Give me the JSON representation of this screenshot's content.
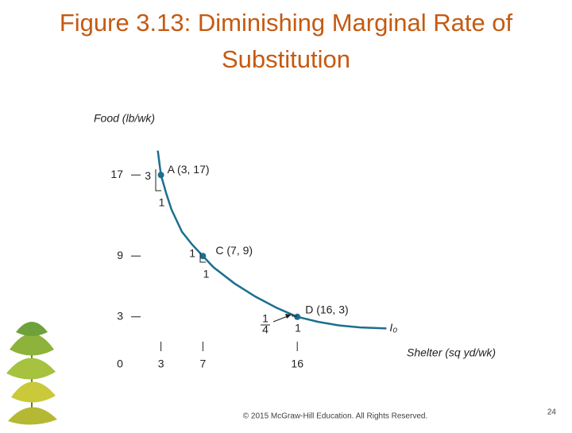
{
  "title": "Figure 3.13: Diminishing Marginal Rate of Substitution",
  "footer": "© 2015 McGraw-Hill Education. All Rights Reserved.",
  "page_number": "24",
  "chart_data": {
    "type": "line",
    "y_label": "Food (lb/wk)",
    "x_label": "Shelter (sq yd/wk)",
    "xlim": [
      0,
      25
    ],
    "ylim": [
      0,
      20
    ],
    "xticks": [
      0,
      3,
      7,
      16
    ],
    "yticks": [
      3,
      9,
      17
    ],
    "series": [
      {
        "name": "I₀",
        "color": "#1b6f8f",
        "x": [
          2.7,
          3,
          3.5,
          4,
          5,
          6,
          7,
          8,
          10,
          12,
          14,
          16,
          18,
          20,
          22,
          24.5
        ],
        "values": [
          19.4,
          17,
          15.2,
          13.6,
          11.4,
          10.1,
          9,
          7.9,
          6.3,
          5.0,
          3.9,
          3,
          2.5,
          2.15,
          1.95,
          1.85
        ]
      }
    ],
    "points": {
      "x": [
        3,
        7,
        16
      ],
      "values": [
        17,
        9,
        3
      ],
      "labels": [
        "A (3, 17)",
        "C (7, 9)",
        "D (16, 3)"
      ],
      "color": "#1b6f8f"
    },
    "mrs_labels": [
      {
        "rise": "3",
        "run": "1"
      },
      {
        "rise": "1",
        "run": "1"
      },
      {
        "rise_numerator": "1",
        "rise_denominator": "4",
        "run": "1"
      }
    ]
  }
}
